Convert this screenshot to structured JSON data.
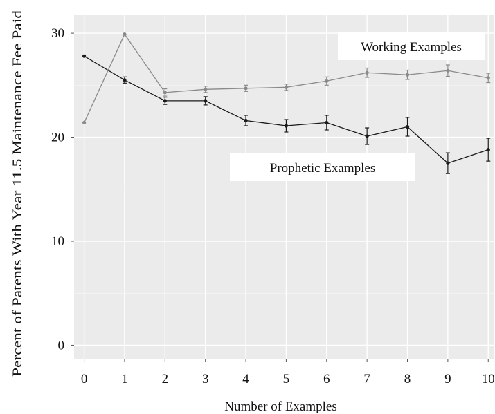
{
  "chart_data": {
    "type": "line",
    "title": "",
    "xlabel": "Number of Examples",
    "ylabel": "Percent of Patents With Year 11.5 Maintenance Fee Paid",
    "x": [
      0,
      1,
      2,
      3,
      4,
      5,
      6,
      7,
      8,
      9,
      10
    ],
    "xticks": [
      "0",
      "1",
      "2",
      "3",
      "4",
      "5",
      "6",
      "7",
      "8",
      "9",
      "10"
    ],
    "yticks": [
      "0",
      "10",
      "20",
      "30"
    ],
    "xlim": [
      -0.25,
      10.15
    ],
    "ylim": [
      -1.3,
      31.8
    ],
    "grid": true,
    "series": [
      {
        "name": "Working Examples",
        "color": "#8a8a8a",
        "values": [
          21.4,
          29.9,
          24.3,
          24.6,
          24.7,
          24.8,
          25.4,
          26.2,
          26.0,
          26.4,
          25.7
        ],
        "errors": [
          0.0,
          0.0,
          0.35,
          0.3,
          0.3,
          0.3,
          0.4,
          0.45,
          0.45,
          0.55,
          0.45
        ]
      },
      {
        "name": "Prophetic Examples",
        "color": "#1a1a1a",
        "values": [
          27.8,
          25.5,
          23.5,
          23.5,
          21.6,
          21.1,
          21.4,
          20.1,
          21.0,
          17.5,
          18.8
        ],
        "errors": [
          0.0,
          0.3,
          0.35,
          0.4,
          0.5,
          0.6,
          0.7,
          0.8,
          0.9,
          1.0,
          1.1
        ]
      }
    ],
    "annotations": [
      {
        "text": "Working Examples",
        "series": 0
      },
      {
        "text": "Prophetic Examples",
        "series": 1
      }
    ]
  }
}
